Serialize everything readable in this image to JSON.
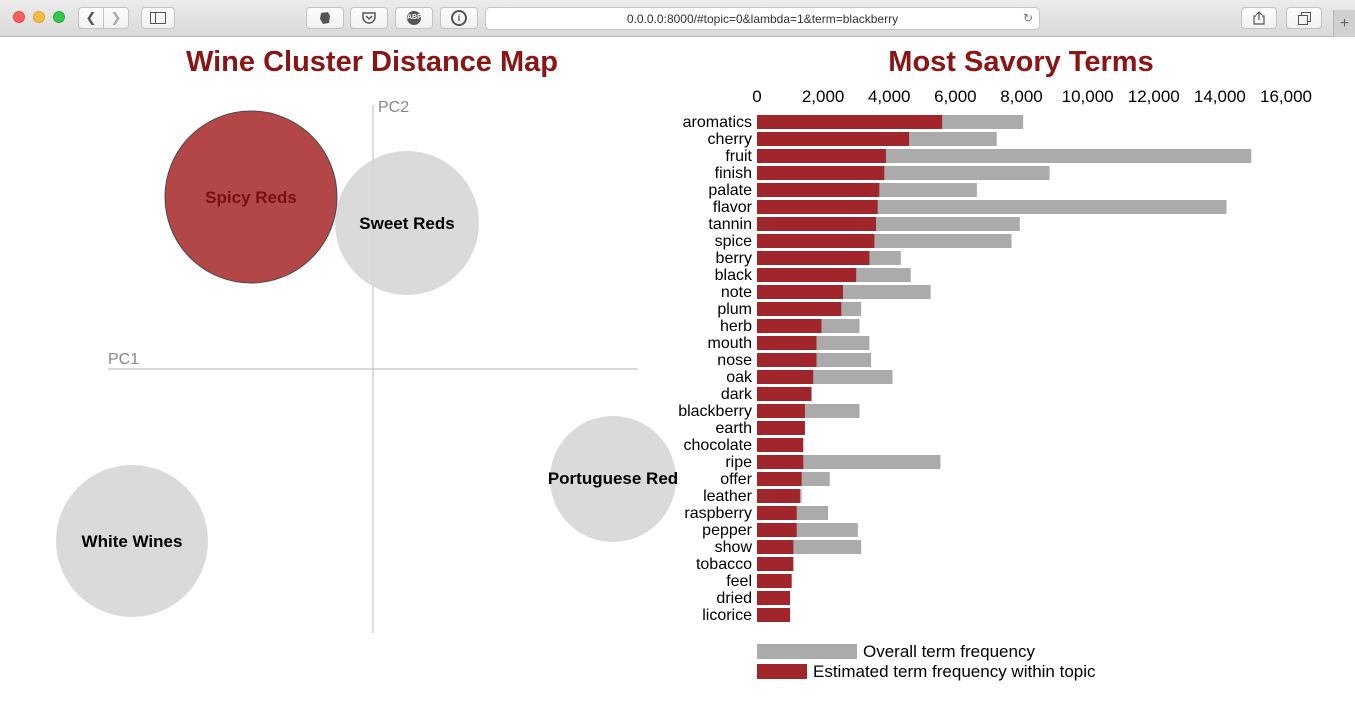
{
  "browser": {
    "url": "0.0.0.0:8000/#topic=0&lambda=1&term=blackberry",
    "icons": {
      "back": "chevron-left-icon",
      "forward": "chevron-right-icon",
      "sidebar": "sidebar-icon",
      "evernote": "evernote-icon",
      "pocket": "pocket-icon",
      "adblock": "adblock-icon",
      "adblock_text": "ABP",
      "info": "info-icon",
      "reload": "reload-icon",
      "share": "share-icon",
      "tabs": "tabs-icon",
      "new_tab": "plus-icon"
    }
  },
  "cluster_map": {
    "title": "Wine Cluster Distance Map",
    "pc1_label": "PC1",
    "pc2_label": "PC2",
    "clusters": [
      {
        "name": "Spicy Reds",
        "selected": true
      },
      {
        "name": "Sweet Reds",
        "selected": false
      },
      {
        "name": "White Wines",
        "selected": false
      },
      {
        "name": "Portuguese Red",
        "selected": false
      }
    ],
    "colors": {
      "selected": "#b34747",
      "unselected": "#d6d6d6",
      "selected_text": "#7a0e0e"
    }
  },
  "chart_data": {
    "type": "bar",
    "title": "Most Savory Terms",
    "orientation": "horizontal",
    "xlim": [
      0,
      16000
    ],
    "x_ticks": [
      "0",
      "2,000",
      "4,000",
      "6,000",
      "8,000",
      "10,000",
      "12,000",
      "14,000",
      "16,000"
    ],
    "categories": [
      "aromatics",
      "cherry",
      "fruit",
      "finish",
      "palate",
      "flavor",
      "tannin",
      "spice",
      "berry",
      "black",
      "note",
      "plum",
      "herb",
      "mouth",
      "nose",
      "oak",
      "dark",
      "blackberry",
      "earth",
      "chocolate",
      "ripe",
      "offer",
      "leather",
      "raspberry",
      "pepper",
      "show",
      "tobacco",
      "feel",
      "dried",
      "licorice"
    ],
    "series": [
      {
        "name": "Overall term frequency",
        "color": "#ababab",
        "values": [
          8050,
          7250,
          14950,
          8850,
          6650,
          14200,
          7950,
          7700,
          4350,
          4650,
          5250,
          3150,
          3100,
          3400,
          3450,
          4100,
          1550,
          3100,
          1050,
          1300,
          5550,
          2200,
          1350,
          2150,
          3050,
          3150,
          420,
          850,
          420,
          400
        ]
      },
      {
        "name": "Estimated term frequency within topic",
        "color": "#a1262b",
        "values": [
          5600,
          4600,
          3900,
          3850,
          3700,
          3650,
          3600,
          3550,
          3400,
          3000,
          2600,
          2550,
          1950,
          1800,
          1800,
          1700,
          1650,
          1450,
          1450,
          1400,
          1400,
          1350,
          1300,
          1200,
          1200,
          1100,
          1100,
          1050,
          1000,
          1000
        ]
      }
    ],
    "legend": [
      "Overall term frequency",
      "Estimated term frequency within topic"
    ],
    "legend_placement": "bottom",
    "grid": false
  }
}
